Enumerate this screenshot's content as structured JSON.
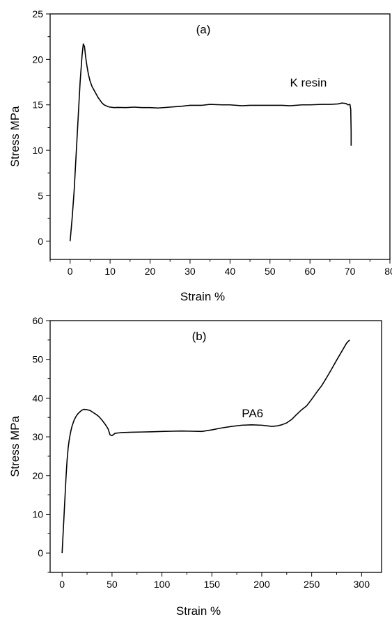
{
  "chart_data": [
    {
      "type": "line",
      "panel_label": "(a)",
      "xlabel": "Strain %",
      "ylabel": "Stress MPa",
      "xlim": [
        -5,
        80
      ],
      "ylim": [
        -2,
        25
      ],
      "xticks": [
        0,
        10,
        20,
        30,
        40,
        50,
        60,
        70,
        80
      ],
      "yticks": [
        0,
        5,
        10,
        15,
        20,
        25
      ],
      "grid": false,
      "series": [
        {
          "name": "K resin",
          "color": "#000000",
          "x": [
            0,
            0.5,
            1,
            1.5,
            2,
            2.5,
            3,
            3.3,
            3.6,
            3.9,
            4.2,
            4.6,
            5,
            5.5,
            6,
            6.5,
            7,
            7.5,
            8,
            8.5,
            9,
            9.5,
            10,
            11,
            12,
            14,
            16,
            18,
            20,
            22,
            25,
            28,
            30,
            33,
            35,
            38,
            40,
            43,
            45,
            48,
            50,
            53,
            55,
            58,
            60,
            63,
            65,
            67,
            68,
            69,
            69.5,
            70,
            70.2,
            70.3,
            70.3
          ],
          "y": [
            0,
            2.5,
            5.5,
            9.5,
            13.5,
            17.5,
            20.5,
            21.7,
            21.4,
            20.2,
            19.3,
            18.3,
            17.6,
            17.0,
            16.6,
            16.2,
            15.8,
            15.5,
            15.2,
            15.0,
            14.9,
            14.8,
            14.75,
            14.7,
            14.72,
            14.7,
            14.75,
            14.7,
            14.7,
            14.65,
            14.75,
            14.85,
            14.95,
            14.95,
            15.05,
            15.0,
            15.0,
            14.9,
            14.95,
            14.95,
            14.95,
            14.95,
            14.9,
            15.0,
            15.0,
            15.05,
            15.05,
            15.1,
            15.2,
            15.15,
            15.0,
            15.05,
            14.5,
            12.0,
            10.5
          ]
        }
      ],
      "annotation": {
        "text": "K resin",
        "x": 55,
        "y": 17
      }
    },
    {
      "type": "line",
      "panel_label": "(b)",
      "xlabel": "Strain %",
      "ylabel": "Stress MPa",
      "xlim": [
        -12,
        320
      ],
      "ylim": [
        -5,
        60
      ],
      "xticks": [
        0,
        50,
        100,
        150,
        200,
        250,
        300
      ],
      "yticks": [
        0,
        10,
        20,
        30,
        40,
        50,
        60
      ],
      "grid": false,
      "series": [
        {
          "name": "PA6",
          "color": "#000000",
          "x": [
            0,
            1,
            2,
            3,
            4,
            5,
            6,
            7,
            8,
            9,
            10,
            12,
            14,
            16,
            18,
            20,
            22,
            25,
            28,
            31,
            34,
            37,
            40,
            43,
            46,
            48,
            50,
            53,
            56,
            60,
            70,
            80,
            90,
            100,
            110,
            120,
            130,
            140,
            150,
            160,
            170,
            180,
            190,
            200,
            210,
            215,
            220,
            225,
            230,
            235,
            240,
            245,
            250,
            255,
            260,
            265,
            270,
            275,
            280,
            285,
            288
          ],
          "y": [
            0,
            5,
            10,
            15,
            20,
            24,
            27,
            29,
            30.5,
            31.8,
            32.8,
            34.3,
            35.3,
            36.0,
            36.5,
            36.9,
            37.1,
            37.0,
            36.8,
            36.3,
            35.8,
            35.2,
            34.3,
            33.3,
            32.1,
            30.5,
            30.3,
            30.9,
            31.0,
            31.1,
            31.2,
            31.25,
            31.3,
            31.4,
            31.45,
            31.5,
            31.45,
            31.4,
            31.8,
            32.3,
            32.7,
            33.0,
            33.1,
            33.0,
            32.7,
            32.8,
            33.1,
            33.6,
            34.5,
            35.8,
            37.0,
            38.0,
            39.7,
            41.5,
            43.2,
            45.3,
            47.5,
            49.8,
            52.0,
            54.2,
            55.0
          ]
        }
      ],
      "annotation": {
        "text": "PA6",
        "x": 180,
        "y": 35
      }
    }
  ]
}
